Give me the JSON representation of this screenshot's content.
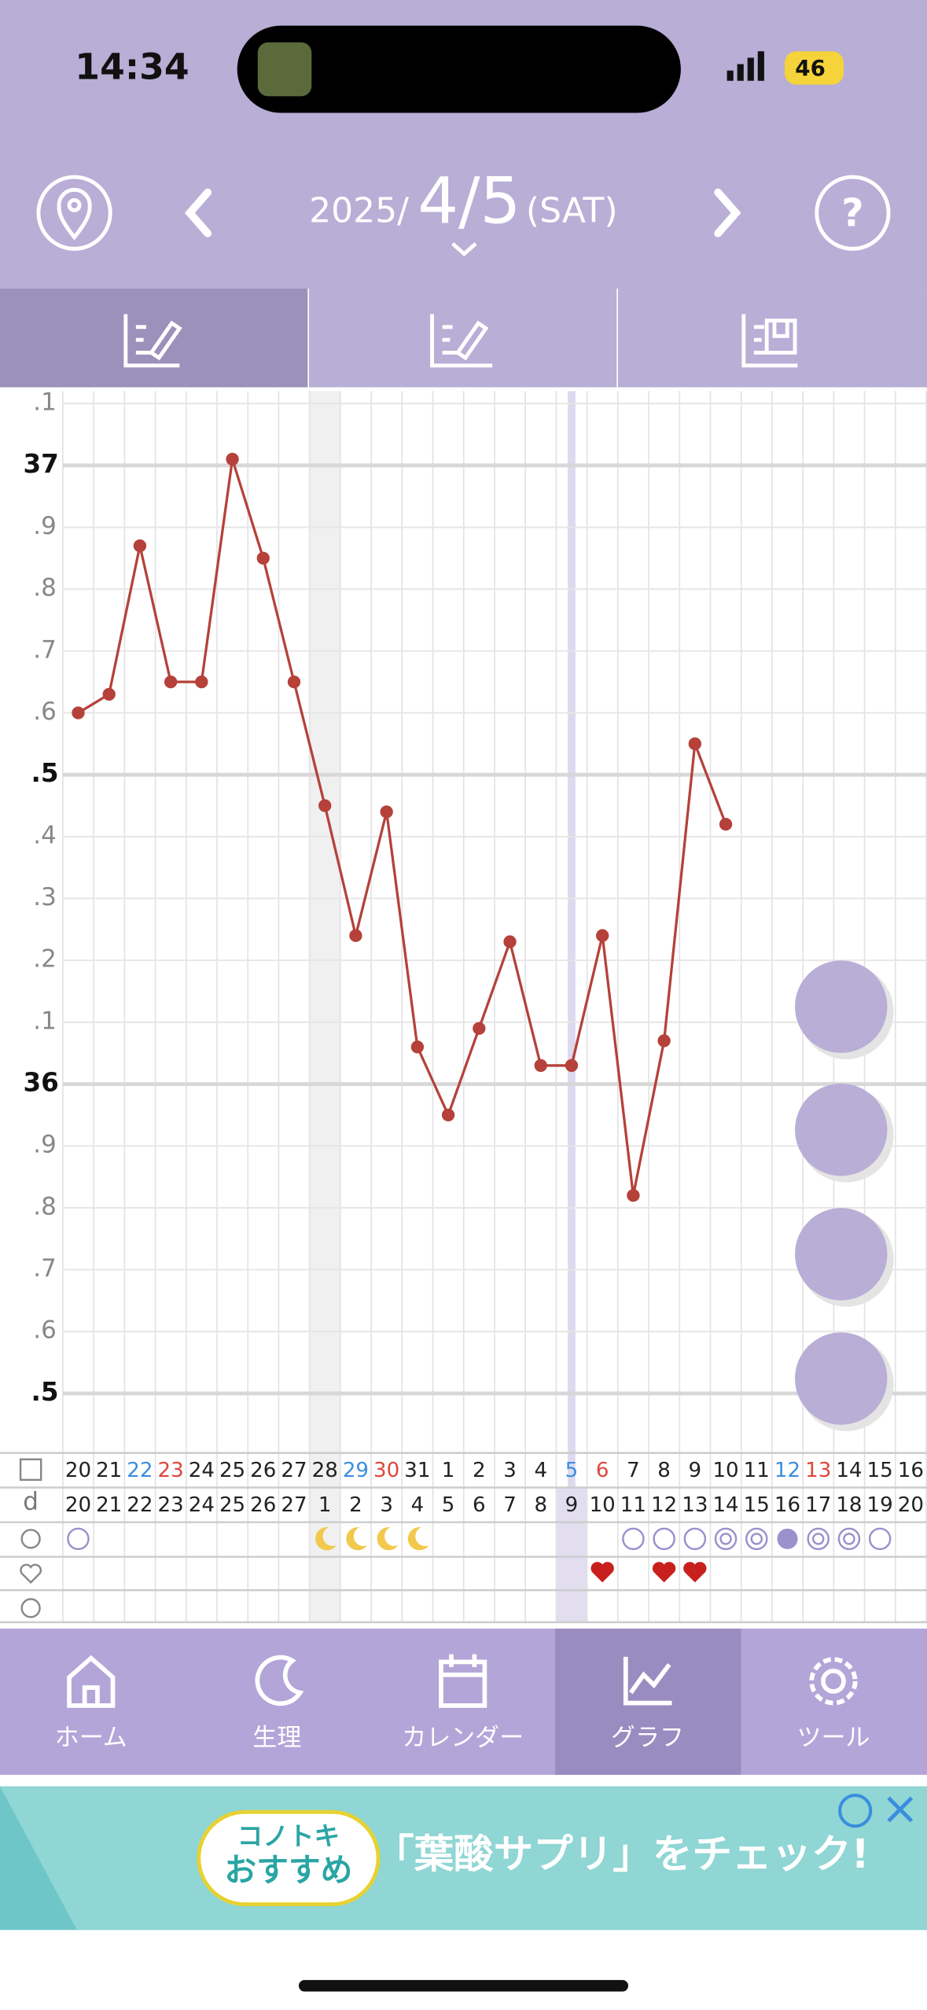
{
  "status_bar": {
    "time": "14:34",
    "battery": "46"
  },
  "header": {
    "year": "2025/",
    "date": "4/5",
    "weekday": "(SAT)"
  },
  "chart_data": {
    "type": "line",
    "x": [
      "20",
      "21",
      "22",
      "23",
      "24",
      "25",
      "26",
      "27",
      "28",
      "29",
      "30",
      "31",
      "1",
      "2",
      "3",
      "4",
      "5",
      "6",
      "7",
      "8",
      "9",
      "10",
      "11",
      "12",
      "13",
      "14",
      "15",
      "16"
    ],
    "x_colors": [
      "#222",
      "#222",
      "#3a8ee0",
      "#e0463c",
      "#222",
      "#222",
      "#222",
      "#222",
      "#222",
      "#3a8ee0",
      "#e0463c",
      "#222",
      "#222",
      "#222",
      "#222",
      "#222",
      "#3a8ee0",
      "#e0463c",
      "#222",
      "#222",
      "#222",
      "#222",
      "#222",
      "#3a8ee0",
      "#e0463c",
      "#222",
      "#222",
      "#222"
    ],
    "cycle_label": "d",
    "cycle_days": [
      20,
      21,
      22,
      23,
      24,
      25,
      26,
      27,
      1,
      2,
      3,
      4,
      5,
      6,
      7,
      8,
      9,
      10,
      11,
      12,
      13,
      14,
      15,
      16,
      17,
      18,
      19,
      20
    ],
    "series": [
      {
        "color": "#b5413a",
        "values": [
          36.6,
          36.63,
          36.87,
          36.65,
          36.65,
          37.01,
          36.85,
          36.65,
          36.45,
          36.24,
          36.44,
          36.06,
          35.95,
          36.09,
          36.23,
          36.03,
          36.03,
          36.24,
          35.82,
          36.07,
          36.55,
          36.42,
          null,
          null,
          null,
          null,
          null,
          null
        ]
      }
    ],
    "ylim": [
      35.41,
      37.12
    ],
    "yticks": [
      {
        "value": 37.1,
        "label": ".1"
      },
      37,
      {
        "value": 36.9,
        "label": ".9"
      },
      {
        "value": 36.8,
        "label": ".8"
      },
      {
        "value": 36.7,
        "label": ".7"
      },
      {
        "value": 36.6,
        "label": ".6"
      },
      {
        "value": 36.5,
        "label": ".5"
      },
      {
        "value": 36.4,
        "label": ".4"
      },
      {
        "value": 36.3,
        "label": ".3"
      },
      {
        "value": 36.2,
        "label": ".2"
      },
      {
        "value": 36.1,
        "label": ".1"
      },
      36,
      {
        "value": 35.9,
        "label": ".9"
      },
      {
        "value": 35.8,
        "label": ".8"
      },
      {
        "value": 35.7,
        "label": ".7"
      },
      {
        "value": 35.6,
        "label": ".6"
      },
      {
        "value": 35.5,
        "label": ".5"
      }
    ],
    "grid": true
  },
  "nav": [
    "ホーム",
    "生理",
    "カレンダー",
    "グラフ",
    "ツール"
  ],
  "ad": {
    "badge_top": "コノトキ",
    "badge_bottom": "おすすめ",
    "headline": "「葉酸サプリ」をチェック!"
  }
}
